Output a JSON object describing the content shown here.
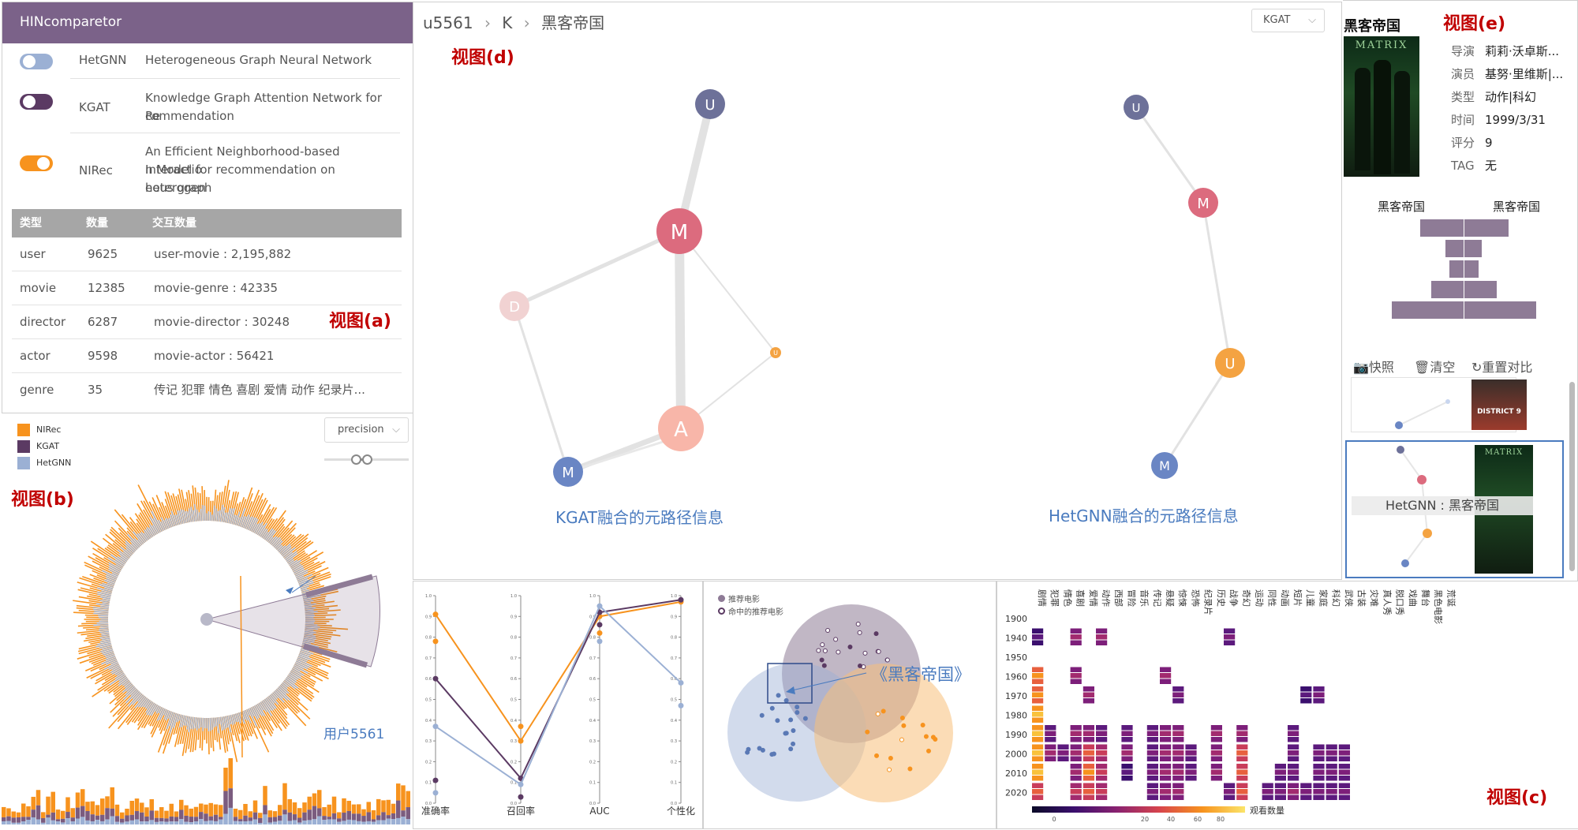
{
  "app_title": "HINcomparetor",
  "models": [
    {
      "name": "HetGNN",
      "desc": [
        "Heterogeneous Graph Neural Network"
      ],
      "toggle_color": "#9bb0d4"
    },
    {
      "name": "KGAT",
      "desc": [
        "Knowledge Graph Attention Network for Re",
        "commendation"
      ],
      "toggle_color": "#5b3a63"
    },
    {
      "name": "NIRec",
      "desc": [
        "An Efficient Neighborhood-based Interactio",
        "n Model for recommendation on heterogen",
        "eous graph"
      ],
      "toggle_color": "#f7931e"
    }
  ],
  "stats_table": {
    "headers": [
      "类型",
      "数量",
      "交互数量"
    ],
    "rows": [
      [
        "user",
        "9625",
        "user-movie : 2,195,882"
      ],
      [
        "movie",
        "12385",
        "movie-genre : 42335"
      ],
      [
        "director",
        "6287",
        "movie-director : 30248"
      ],
      [
        "actor",
        "9598",
        "movie-actor : 56421"
      ],
      [
        "genre",
        "35",
        "传记 犯罪 情色 喜剧 爱情 动作 纪录片..."
      ]
    ]
  },
  "view_labels": {
    "a": "视图(a)",
    "b": "视图(b)",
    "c": "视图(c)",
    "d": "视图(d)",
    "e": "视图(e)"
  },
  "legend": [
    {
      "name": "NIRec",
      "color": "#f7931e"
    },
    {
      "name": "KGAT",
      "color": "#5b3a63"
    },
    {
      "name": "HetGNN",
      "color": "#9bb0d4"
    }
  ],
  "metric_select": "precision",
  "user_annotation": "用户5561",
  "breadcrumb": {
    "user": "u5561",
    "k": "K",
    "movie": "黑客帝国"
  },
  "model_select": "KGAT",
  "graphs": {
    "left_caption": "KGAT融合的元路径信息",
    "right_caption": "HetGNN融合的元路径信息",
    "node_letters": {
      "U": "U",
      "M": "M",
      "D": "D",
      "A": "A",
      "u": "U"
    }
  },
  "movie_card": {
    "title": "黑客帝国",
    "poster_text": "MATRIX",
    "fields": [
      {
        "k": "导演",
        "v": "莉莉·沃卓斯..."
      },
      {
        "k": "演员",
        "v": "基努·里维斯|..."
      },
      {
        "k": "类型",
        "v": "动作|科幻"
      },
      {
        "k": "时间",
        "v": "1999/3/31"
      },
      {
        "k": "评分",
        "v": "9"
      },
      {
        "k": "TAG",
        "v": "无"
      }
    ]
  },
  "compare_labels": {
    "left": "黑客帝国",
    "right": "黑客帝国"
  },
  "snapshot_buttons": {
    "snapshot": "快照",
    "clear": "清空",
    "reset": "重置对比"
  },
  "snapshots": [
    {
      "poster_text": "DISTRICT 9"
    },
    {
      "poster_text": "MATRIX",
      "label": "HetGNN : 黑客帝国"
    }
  ],
  "parallel": {
    "axes": [
      "准确率",
      "召回率",
      "AUC",
      "个性化"
    ],
    "ticks": [
      "1.0",
      "0.9",
      "0.8",
      "0.7",
      "0.6",
      "0.5",
      "0.4",
      "0.3",
      "0.2",
      "0.1",
      "0.0"
    ],
    "series": [
      {
        "name": "NIRec",
        "color": "#f7931e",
        "values": [
          0.91,
          0.3,
          0.9,
          0.97
        ]
      },
      {
        "name": "KGAT",
        "color": "#5b3a63",
        "values": [
          0.6,
          0.12,
          0.92,
          0.98
        ]
      },
      {
        "name": "HetGNN",
        "color": "#9bb0d4",
        "values": [
          0.37,
          0.09,
          0.95,
          0.58
        ]
      }
    ],
    "extra_points": [
      [
        0,
        0.78,
        "#f7931e"
      ],
      [
        0,
        0.11,
        "#5b3a63"
      ],
      [
        0,
        0.05,
        "#9bb0d4"
      ],
      [
        1,
        0.37,
        "#f7931e"
      ],
      [
        1,
        0.03,
        "#5b3a63"
      ],
      [
        2,
        0.82,
        "#f7931e"
      ],
      [
        2,
        0.86,
        "#5b3a63"
      ],
      [
        2,
        0.78,
        "#9bb0d4"
      ],
      [
        3,
        0.47,
        "#9bb0d4"
      ]
    ]
  },
  "venn": {
    "legend": [
      "推荐电影",
      "命中的推荐电影"
    ],
    "annotation": "《黑客帝国》"
  },
  "heatmap": {
    "genres": [
      "剧情",
      "犯罪",
      "情色",
      "喜剧",
      "爱情",
      "动作",
      "西部",
      "冒险",
      "音乐",
      "传记",
      "悬疑",
      "惊悚",
      "恐怖",
      "纪录片",
      "历史",
      "战争",
      "奇幻",
      "运动",
      "同性",
      "动画",
      "短片",
      "儿童",
      "家庭",
      "科幻",
      "武侠",
      "古装",
      "灾难",
      "真人秀",
      "脱口秀",
      "戏曲",
      "舞台",
      "黑色电影",
      "荒诞"
    ],
    "years": [
      "1900",
      "1940",
      "1950",
      "1960",
      "1970",
      "1980",
      "1990",
      "2000",
      "2010",
      "2020"
    ],
    "colorbar_ticks": [
      "0",
      "20",
      "40",
      "60",
      "80"
    ],
    "colorbar_label": "观看数量"
  },
  "circle_bars_seed": 7
}
